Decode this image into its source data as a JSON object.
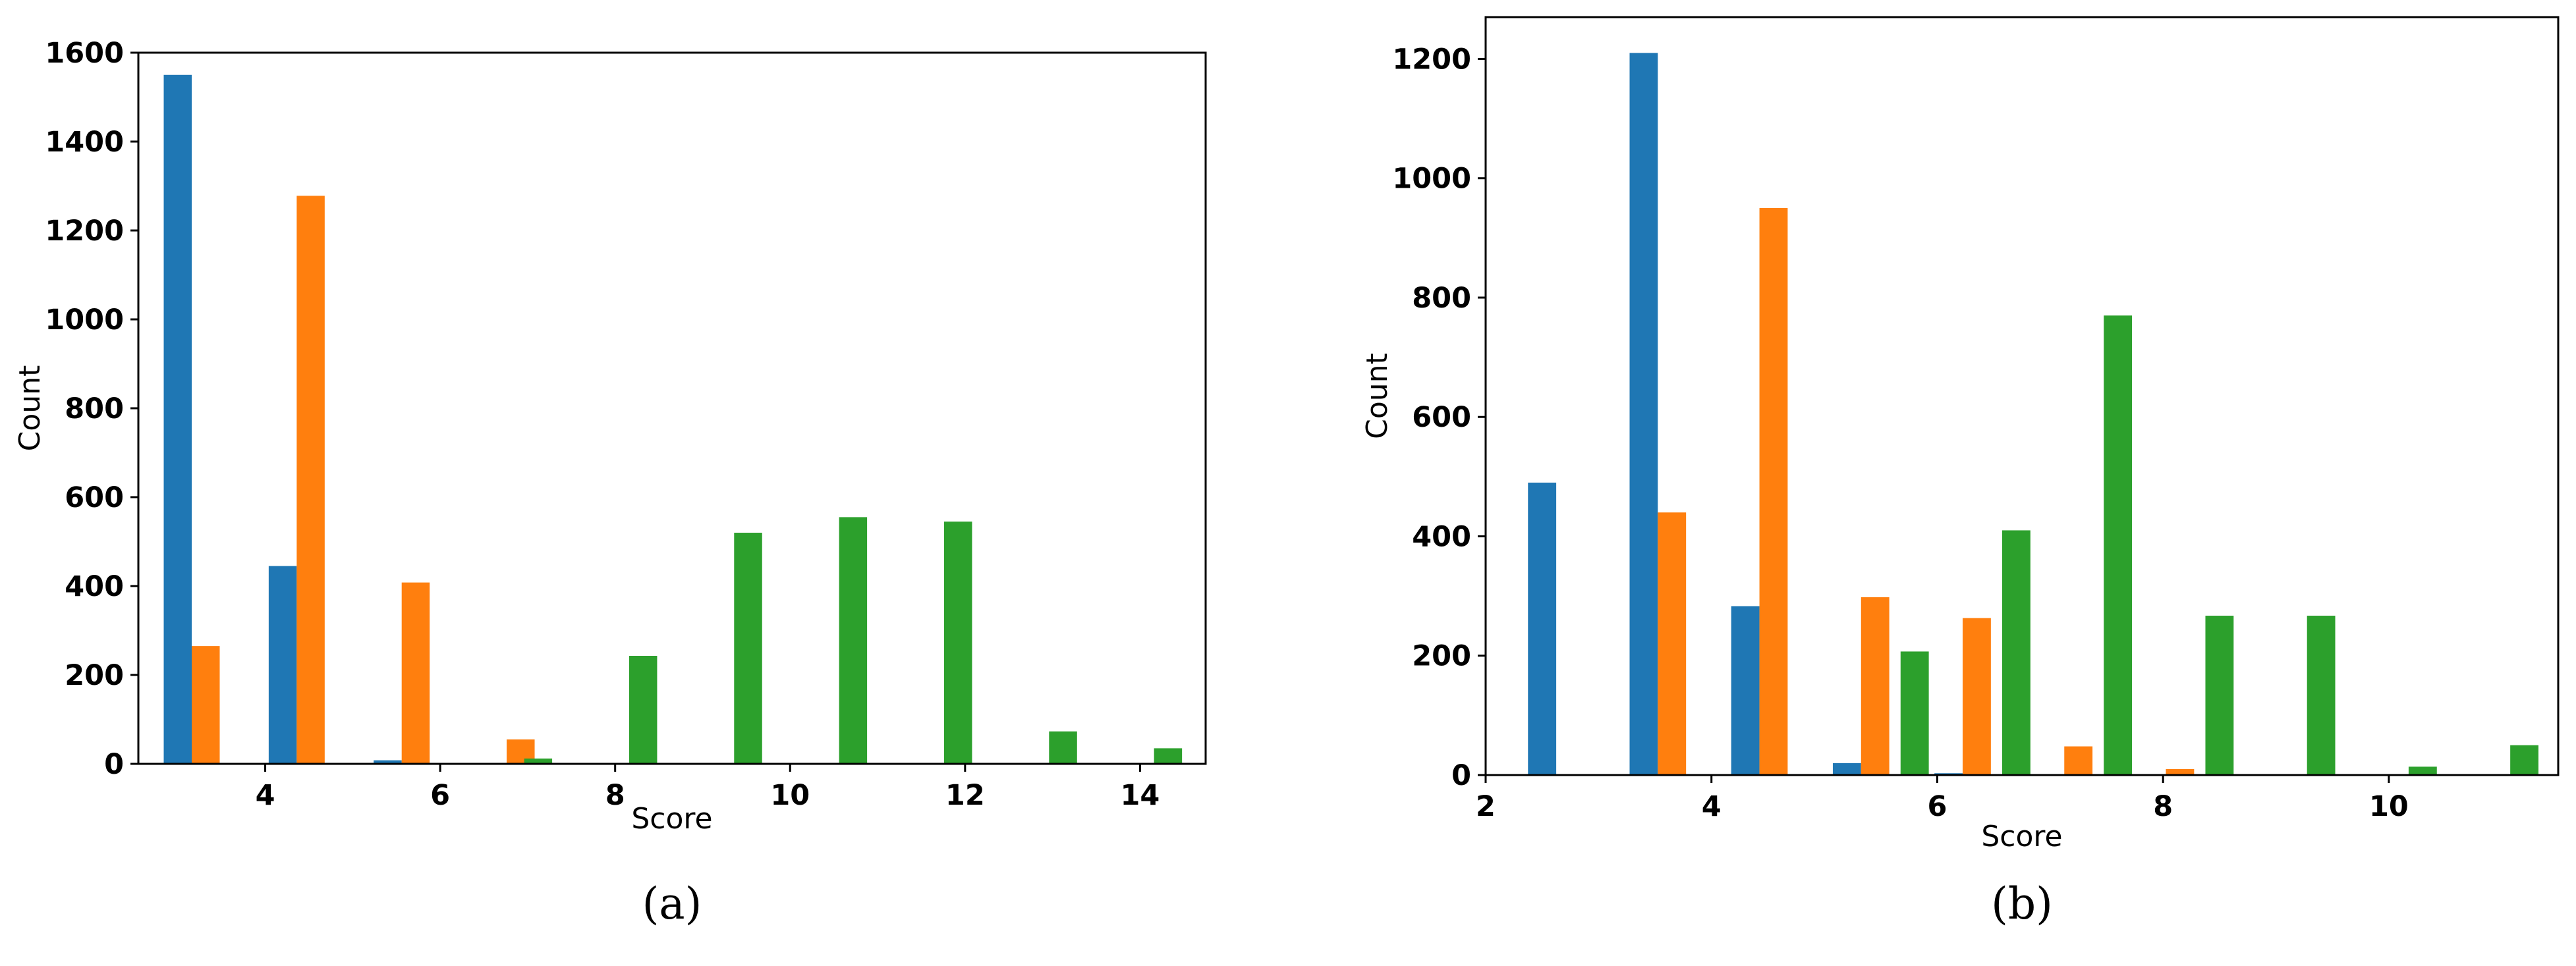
{
  "chart_data": [
    {
      "type": "bar",
      "panel_label": "(a)",
      "xlabel": "Score",
      "ylabel": "Count",
      "xlim": [
        2.55,
        14.75
      ],
      "ylim": [
        0,
        1600
      ],
      "xticks": [
        4,
        6,
        8,
        10,
        12,
        14
      ],
      "yticks": [
        0,
        200,
        400,
        600,
        800,
        1000,
        1200,
        1400,
        1600
      ],
      "bar_width": 0.32,
      "series": [
        {
          "color": "#1f77b4",
          "bars": [
            {
              "x": 3.0,
              "value": 1550
            },
            {
              "x": 4.2,
              "value": 445
            },
            {
              "x": 5.4,
              "value": 8
            }
          ]
        },
        {
          "color": "#ff7f0e",
          "bars": [
            {
              "x": 3.32,
              "value": 265
            },
            {
              "x": 4.52,
              "value": 1278
            },
            {
              "x": 5.72,
              "value": 408
            },
            {
              "x": 6.92,
              "value": 55
            }
          ]
        },
        {
          "color": "#2ca02c",
          "bars": [
            {
              "x": 7.12,
              "value": 12
            },
            {
              "x": 8.32,
              "value": 243
            },
            {
              "x": 9.52,
              "value": 520
            },
            {
              "x": 10.72,
              "value": 555
            },
            {
              "x": 11.92,
              "value": 545
            },
            {
              "x": 13.12,
              "value": 73
            },
            {
              "x": 14.32,
              "value": 35
            }
          ]
        }
      ]
    },
    {
      "type": "bar",
      "panel_label": "(b)",
      "xlabel": "Score",
      "ylabel": "Count",
      "xlim": [
        2.0,
        11.5
      ],
      "ylim": [
        0,
        1270
      ],
      "xticks": [
        2,
        4,
        6,
        8,
        10
      ],
      "yticks": [
        0,
        200,
        400,
        600,
        800,
        1000,
        1200
      ],
      "bar_width": 0.25,
      "series": [
        {
          "color": "#1f77b4",
          "bars": [
            {
              "x": 2.5,
              "value": 490
            },
            {
              "x": 3.4,
              "value": 1210
            },
            {
              "x": 4.3,
              "value": 283
            },
            {
              "x": 5.2,
              "value": 20
            },
            {
              "x": 6.1,
              "value": 3
            }
          ]
        },
        {
          "color": "#ff7f0e",
          "bars": [
            {
              "x": 3.65,
              "value": 440
            },
            {
              "x": 4.55,
              "value": 950
            },
            {
              "x": 5.45,
              "value": 298
            },
            {
              "x": 6.35,
              "value": 263
            },
            {
              "x": 7.25,
              "value": 48
            },
            {
              "x": 8.15,
              "value": 10
            }
          ]
        },
        {
          "color": "#2ca02c",
          "bars": [
            {
              "x": 5.8,
              "value": 207
            },
            {
              "x": 6.7,
              "value": 410
            },
            {
              "x": 7.6,
              "value": 770
            },
            {
              "x": 8.5,
              "value": 267
            },
            {
              "x": 9.4,
              "value": 267
            },
            {
              "x": 10.3,
              "value": 14
            },
            {
              "x": 11.2,
              "value": 50
            }
          ]
        }
      ]
    }
  ]
}
